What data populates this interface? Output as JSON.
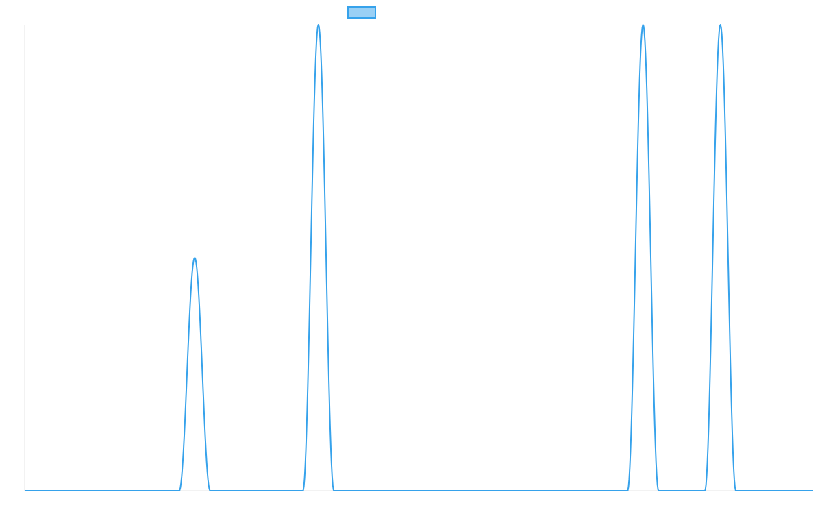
{
  "chart_data": {
    "type": "line",
    "title": "",
    "xlabel": "",
    "ylabel": "",
    "xlim": [
      0,
      102
    ],
    "ylim": [
      0,
      1
    ],
    "grid": false,
    "legend": "top-center",
    "series": [
      {
        "color": "#36a2eb",
        "fill": "#9ad0f5",
        "peaks": [
          {
            "center": 22,
            "height": 0.5,
            "half_width": 2
          },
          {
            "center": 38,
            "height": 1.0,
            "half_width": 2
          },
          {
            "center": 80,
            "height": 1.0,
            "half_width": 2
          },
          {
            "center": 90,
            "height": 1.0,
            "half_width": 2
          }
        ]
      }
    ]
  }
}
